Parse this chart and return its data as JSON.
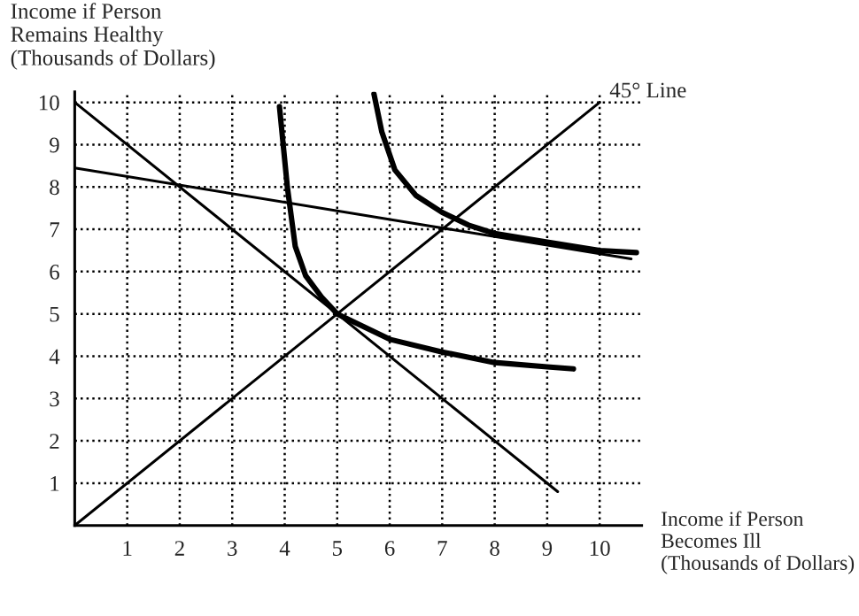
{
  "chart_data": {
    "type": "line",
    "xlabel": "Income if Person\nBecomes Ill\n(Thousands of Dollars)",
    "ylabel": "Income if Person\nRemains Healthy\n(Thousands of Dollars)",
    "annotations": [
      {
        "text": "45° Line",
        "x": 10,
        "y": 10
      }
    ],
    "series": [
      {
        "color": "#000000",
        "x": [
          0,
          10
        ],
        "values": [
          0,
          10
        ]
      },
      {
        "color": "#000000",
        "x": [
          0,
          9.2
        ],
        "values": [
          10,
          0.8
        ]
      },
      {
        "color": "#000000",
        "x": [
          0,
          10.6
        ],
        "values": [
          8.45,
          6.3
        ]
      },
      {
        "color": "#000000",
        "x": [
          3.9,
          4.05,
          4.2,
          4.4,
          4.7,
          5,
          5.5,
          6,
          7,
          8,
          9,
          9.5
        ],
        "values": [
          9.9,
          8,
          6.6,
          5.9,
          5.4,
          5,
          4.7,
          4.4,
          4.1,
          3.85,
          3.75,
          3.7
        ]
      },
      {
        "color": "#000000",
        "x": [
          5.7,
          5.85,
          6.1,
          6.5,
          7,
          7.5,
          8,
          9,
          10,
          10.7
        ],
        "values": [
          10.2,
          9.3,
          8.4,
          7.8,
          7.4,
          7.1,
          6.9,
          6.7,
          6.5,
          6.45
        ]
      }
    ],
    "xlim": [
      0,
      10.8
    ],
    "ylim": [
      0,
      10.25
    ],
    "xticks": [
      1,
      2,
      3,
      4,
      5,
      6,
      7,
      8,
      9,
      10
    ],
    "yticks": [
      1,
      2,
      3,
      4,
      5,
      6,
      7,
      8,
      9,
      10
    ],
    "grid": true,
    "line_style": "solid",
    "marker": "none"
  }
}
